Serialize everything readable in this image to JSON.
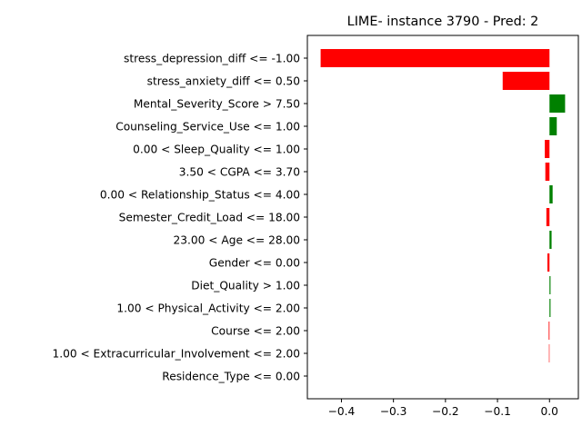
{
  "chart_data": {
    "type": "bar",
    "orientation": "horizontal",
    "title": "LIME- instance 3790 - Pred: 2",
    "xlabel": "",
    "ylabel": "",
    "xlim": [
      -0.4655,
      0.0555
    ],
    "xticks": [
      -0.4,
      -0.3,
      -0.2,
      -0.1,
      0.0
    ],
    "xtick_labels": [
      "−0.4",
      "−0.3",
      "−0.2",
      "−0.1",
      "0.0"
    ],
    "grid": false,
    "legend": "none",
    "colors": {
      "positive": "#008000",
      "negative": "#ff0000"
    },
    "categories": [
      "stress_depression_diff <= -1.00",
      "stress_anxiety_diff <= 0.50",
      "Mental_Severity_Score > 7.50",
      "Counseling_Service_Use <= 1.00",
      "0.00 < Sleep_Quality <= 1.00",
      "3.50 < CGPA <= 3.70",
      "0.00 < Relationship_Status <= 4.00",
      "Semester_Credit_Load <= 18.00",
      "23.00 < Age <= 28.00",
      "Gender <= 0.00",
      "Diet_Quality > 1.00",
      "1.00 < Physical_Activity <= 2.00",
      "Course <= 2.00",
      "1.00 < Extracurricular_Involvement <= 2.00",
      "Residence_Type <= 0.00"
    ],
    "values": [
      -0.44,
      -0.09,
      0.03,
      0.014,
      -0.009,
      -0.008,
      0.006,
      -0.006,
      0.004,
      -0.004,
      0.002,
      0.002,
      -0.0015,
      -0.001,
      0.0
    ]
  }
}
